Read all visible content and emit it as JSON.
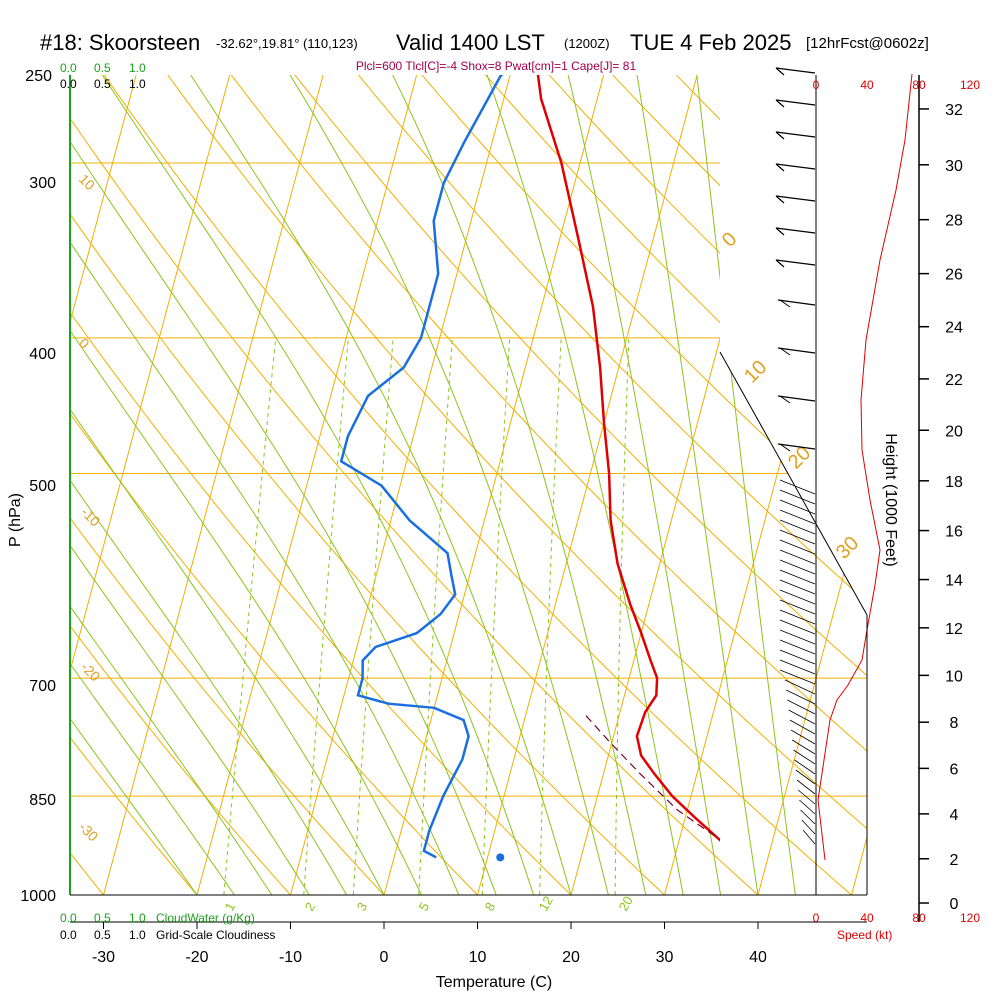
{
  "header": {
    "station": "#18: Skoorsteen",
    "coords": "-32.62°,19.81° (110,123)",
    "valid": "Valid 1400 LST",
    "zulu": "(1200Z)",
    "date": "TUE 4 Feb 2025",
    "fcst": "[12hrFcst@0602z]",
    "params": "Plcl=600 Tlcl[C]=-4 Shox=8 Pwat[cm]=1 Cape[J]= 81"
  },
  "cloud_scale": {
    "top_green": [
      "0.0",
      "0.5",
      "1.0"
    ],
    "top_black": [
      "0.0",
      "0.5",
      "1.0"
    ],
    "bottom_green": [
      "0.0",
      "0.5",
      "1.0"
    ],
    "bottom_black": [
      "0.0",
      "0.5",
      "1.0"
    ],
    "cloudwater_label": "CloudWater (g/Kg)",
    "cloudiness_label": "Grid-Scale Cloudiness"
  },
  "speed_scale": {
    "top": [
      "0",
      "40",
      "80",
      "120"
    ],
    "bottom": [
      "0",
      "40",
      "80",
      "120"
    ],
    "label": "Speed (kt)"
  },
  "colors": {
    "temperature": "#e00000",
    "dewpoint": "#1a6fe0",
    "isotherm": "#f0b000",
    "dry_adiabat": "#f0b000",
    "moist_adiabat": "#8cc41c",
    "mixing_ratio": "#8cc41c",
    "speed": "#e00000",
    "cloud": "#19a319"
  },
  "chart_data": {
    "type": "line",
    "title": "#18: Skoorsteen",
    "xlabel": "Temperature (C)",
    "ylabel": "P (hPa)",
    "y2label": "Height (1000 Feet)",
    "xlim": [
      -35,
      44
    ],
    "ylim": [
      1000,
      250
    ],
    "y_scale": "log",
    "x_ticks": [
      "-30",
      "-20",
      "-10",
      "0",
      "10",
      "20",
      "30",
      "40"
    ],
    "pressure_ticks": [
      "250",
      "300",
      "400",
      "500",
      "700",
      "850",
      "1000"
    ],
    "height_ticks": [
      "0",
      "2",
      "4",
      "6",
      "8",
      "10",
      "12",
      "14",
      "16",
      "18",
      "20",
      "22",
      "24",
      "26",
      "28",
      "30",
      "32"
    ],
    "dry_adiabat_labels": [
      "-10",
      "0",
      "10",
      "20",
      "30"
    ],
    "moist_adiabat_labels": [
      "0",
      "10",
      "20",
      "30"
    ],
    "mixing_ratio_labels": [
      "1",
      "2",
      "3",
      "5",
      "8",
      "12",
      "20"
    ],
    "series": [
      {
        "name": "Temperature",
        "points": [
          [
            37.5,
            940
          ],
          [
            36,
            930
          ],
          [
            34,
            910
          ],
          [
            31,
            880
          ],
          [
            28,
            850
          ],
          [
            25.5,
            820
          ],
          [
            23.5,
            795
          ],
          [
            22.5,
            770
          ],
          [
            22.7,
            740
          ],
          [
            23.4,
            720
          ],
          [
            23,
            700
          ],
          [
            21.8,
            680
          ],
          [
            20,
            650
          ],
          [
            18,
            620
          ],
          [
            15.5,
            580
          ],
          [
            13.5,
            540
          ],
          [
            12,
            500
          ],
          [
            10,
            460
          ],
          [
            8,
            420
          ],
          [
            5.5,
            380
          ],
          [
            2,
            340
          ],
          [
            -2,
            300
          ],
          [
            -6,
            270
          ],
          [
            -8,
            250
          ]
        ]
      },
      {
        "name": "Dewpoint",
        "points": [
          [
            4.5,
            940
          ],
          [
            3,
            930
          ],
          [
            3,
            900
          ],
          [
            3.5,
            850
          ],
          [
            4.5,
            800
          ],
          [
            4.5,
            770
          ],
          [
            3.5,
            750
          ],
          [
            0,
            735
          ],
          [
            -5,
            730
          ],
          [
            -8.5,
            720
          ],
          [
            -8.5,
            700
          ],
          [
            -9,
            680
          ],
          [
            -8,
            665
          ],
          [
            -4,
            650
          ],
          [
            -2,
            630
          ],
          [
            -1,
            610
          ],
          [
            -2,
            590
          ],
          [
            -3,
            570
          ],
          [
            -8,
            540
          ],
          [
            -12,
            510
          ],
          [
            -17,
            490
          ],
          [
            -17,
            470
          ],
          [
            -16,
            440
          ],
          [
            -13,
            420
          ],
          [
            -12,
            400
          ],
          [
            -12,
            360
          ],
          [
            -14,
            330
          ],
          [
            -14,
            310
          ],
          [
            -13,
            290
          ],
          [
            -11,
            260
          ],
          [
            -9,
            250
          ]
        ]
      },
      {
        "name": "Parcel",
        "points": [
          [
            37.8,
            940
          ],
          [
            34,
            910
          ],
          [
            29,
            870
          ],
          [
            24,
            820
          ],
          [
            20,
            780
          ],
          [
            16,
            740
          ]
        ]
      }
    ],
    "surface_temperature": 38.5,
    "surface_dewpoint": 12
  }
}
